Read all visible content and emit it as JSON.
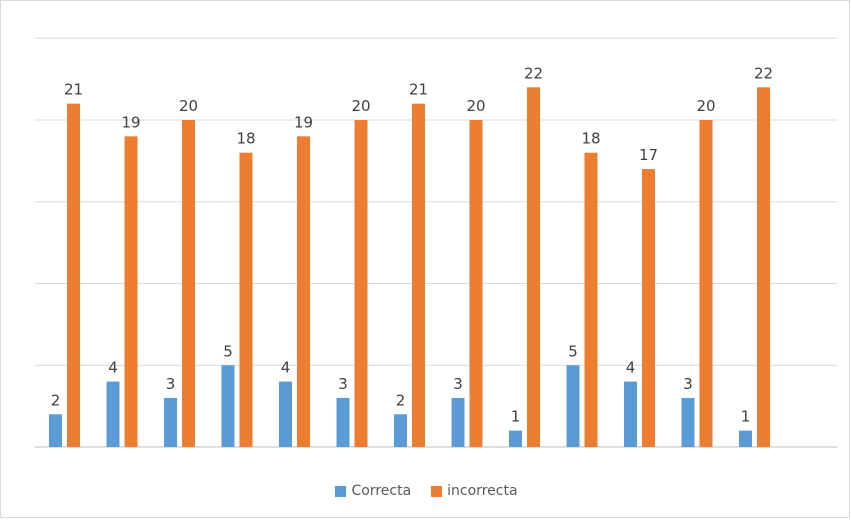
{
  "chart_data": {
    "type": "bar",
    "categories": [
      "",
      "",
      "",
      "",
      "",
      "",
      "",
      "",
      "",
      "",
      "",
      "",
      ""
    ],
    "series": [
      {
        "name": "Correcta",
        "color": "#5B9BD5",
        "values": [
          2,
          4,
          3,
          5,
          4,
          3,
          2,
          3,
          1,
          5,
          4,
          3,
          1
        ]
      },
      {
        "name": "incorrecta",
        "color": "#ED7D31",
        "values": [
          21,
          19,
          20,
          18,
          19,
          20,
          21,
          20,
          22,
          18,
          17,
          20,
          22
        ]
      }
    ],
    "ylim": [
      0,
      25
    ],
    "grid": true,
    "data_labels": true,
    "legend_position": "bottom"
  }
}
